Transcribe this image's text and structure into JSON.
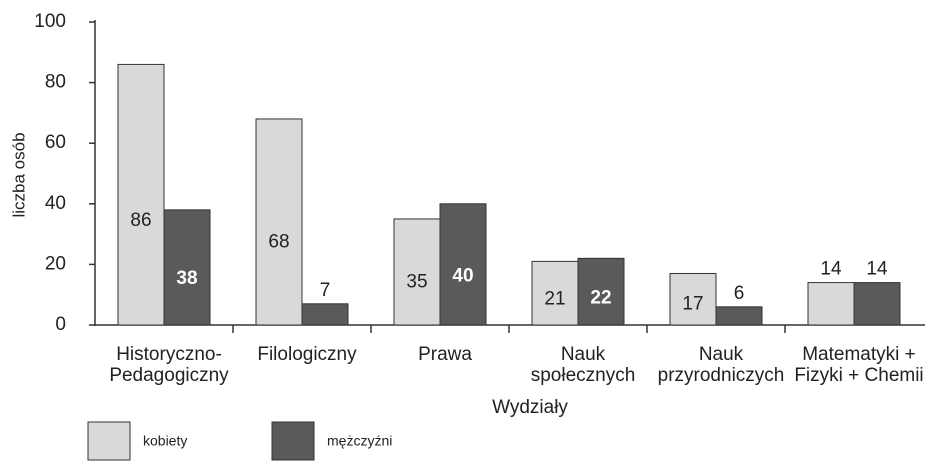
{
  "chart_data": {
    "type": "bar",
    "x_label": "Wydziały",
    "y_label": "liczba osób",
    "categories": [
      "Historyczno-\nPedagogiczny",
      "Filologiczny",
      "Prawa",
      "Nauk\nspołecznych",
      "Nauk\nprzyrodniczych",
      "Matematyki +\nFizyki + Chemii"
    ],
    "series": [
      {
        "name": "kobiety",
        "color": "#d9d9d9",
        "values": [
          86,
          68,
          35,
          21,
          17,
          14
        ]
      },
      {
        "name": "mężczyźni",
        "color": "#5a5a5a",
        "values": [
          38,
          7,
          40,
          22,
          6,
          14
        ]
      }
    ],
    "ylim": [
      0,
      100
    ],
    "yticks": [
      0,
      20,
      40,
      60,
      80,
      100
    ],
    "grid": false,
    "legend": "bottom"
  }
}
